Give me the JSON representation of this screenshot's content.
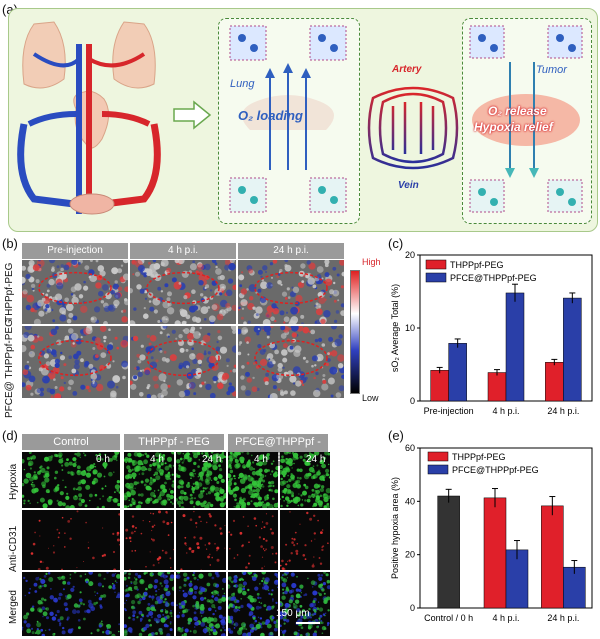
{
  "panels": {
    "a": {
      "label": "(a)",
      "lung_label": "Lung",
      "o2_loading": "O₂ loading",
      "artery_label": "Artery",
      "vein_label": "Vein",
      "tumor_label": "Tumor",
      "o2_release": "O₂ release",
      "hypoxia_relief": "Hypoxia relief"
    },
    "b": {
      "label": "(b)",
      "col_headers": [
        "Pre-injection",
        "4 h p.i.",
        "24 h p.i."
      ],
      "row_labels": [
        "THPPpf-PEG",
        "PFCE@ THPPpf-PEG"
      ],
      "scale_high": "High",
      "scale_low": "Low"
    },
    "c": {
      "label": "(c)"
    },
    "d": {
      "label": "(d)",
      "col_headers": [
        "Control",
        "THPPpf - PEG",
        "PFCE@THPPpf - PEG"
      ],
      "time_labels": [
        "0 h",
        "4 h",
        "24 h",
        "4 h",
        "24 h"
      ],
      "row_labels": [
        "Hypoxia",
        "Anti-CD31",
        "Merged"
      ],
      "scale_bar": "150 μm"
    },
    "e": {
      "label": "(e)"
    }
  },
  "chart_data": [
    {
      "id": "c",
      "type": "bar",
      "categories": [
        "Pre-injection",
        "4 h p.i.",
        "24 h p.i."
      ],
      "series": [
        {
          "name": "THPPpf-PEG",
          "color": "#e0202a",
          "values": [
            4.2,
            3.9,
            5.3
          ],
          "errors": [
            0.4,
            0.4,
            0.4
          ]
        },
        {
          "name": "PFCE@THPPpf-PEG",
          "color": "#2a3fa8",
          "values": [
            7.9,
            14.8,
            14.1
          ],
          "errors": [
            0.6,
            1.2,
            0.7
          ]
        }
      ],
      "ylabel": "sO₂ Average Total (%)",
      "ylim": [
        0,
        20
      ],
      "yticks": [
        0,
        10,
        20
      ],
      "legend": "top-left"
    },
    {
      "id": "e",
      "type": "bar",
      "categories": [
        "Control / 0 h",
        "4 h p.i.",
        "24 h p.i."
      ],
      "series": [
        {
          "name": "Control",
          "color": "#333333",
          "values": [
            42.0,
            null,
            null
          ],
          "errors": [
            2.5,
            null,
            null
          ]
        },
        {
          "name": "THPPpf-PEG",
          "color": "#e0202a",
          "values": [
            null,
            41.3,
            38.3
          ],
          "errors": [
            null,
            3.5,
            3.5
          ]
        },
        {
          "name": "PFCE@THPPpf-PEG",
          "color": "#2a3fa8",
          "values": [
            null,
            21.8,
            15.3
          ],
          "errors": [
            null,
            3.5,
            2.5
          ]
        }
      ],
      "ylabel": "Positive hypoxia area (%)",
      "ylim": [
        0,
        60
      ],
      "yticks": [
        0,
        20,
        40,
        60
      ],
      "legend": "top-right"
    }
  ]
}
